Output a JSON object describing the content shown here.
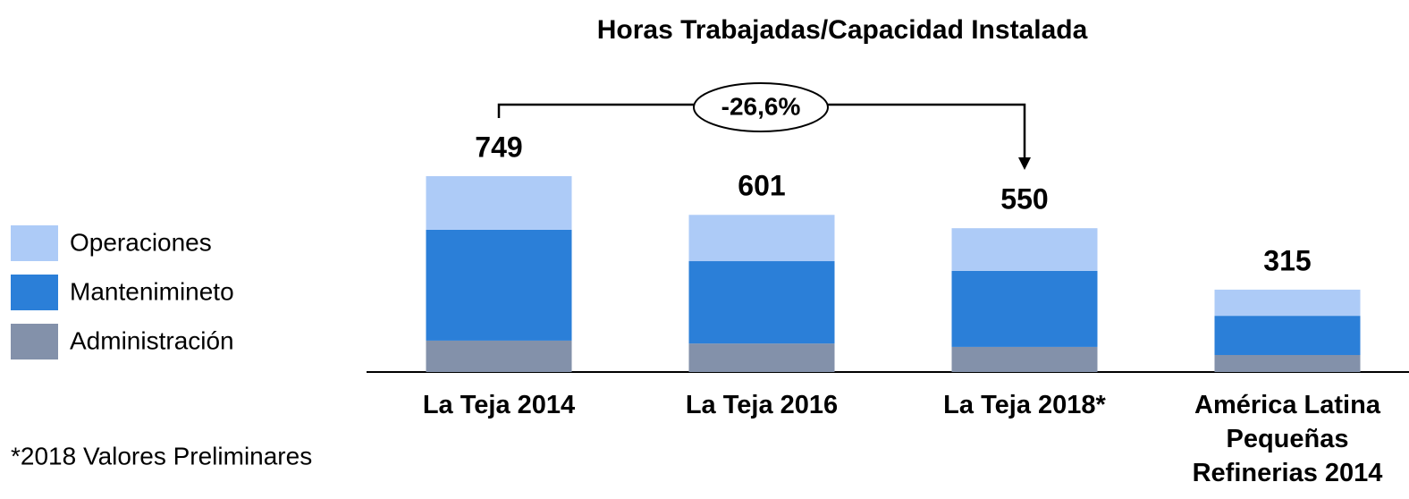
{
  "chart_data": {
    "type": "stacked_bar",
    "title": "Horas Trabajadas/Capacidad Instalada",
    "categories": [
      "La Teja 2014",
      "La Teja 2016",
      "La Teja 2018*",
      "América Latina Pequeñas Refinerias 2014"
    ],
    "series": [
      {
        "name": "Administración",
        "color": "#8391aa",
        "values": [
          120,
          109,
          96,
          65
        ]
      },
      {
        "name": "Mantenimineto",
        "color": "#2b7fd8",
        "values": [
          424,
          315,
          291,
          150
        ]
      },
      {
        "name": "Operaciones",
        "color": "#adcbf7",
        "values": [
          205,
          177,
          163,
          100
        ]
      }
    ],
    "totals": [
      749,
      601,
      550,
      315
    ],
    "annotation": "-26,6%",
    "footnote": "*2018 Valores Preliminares"
  }
}
